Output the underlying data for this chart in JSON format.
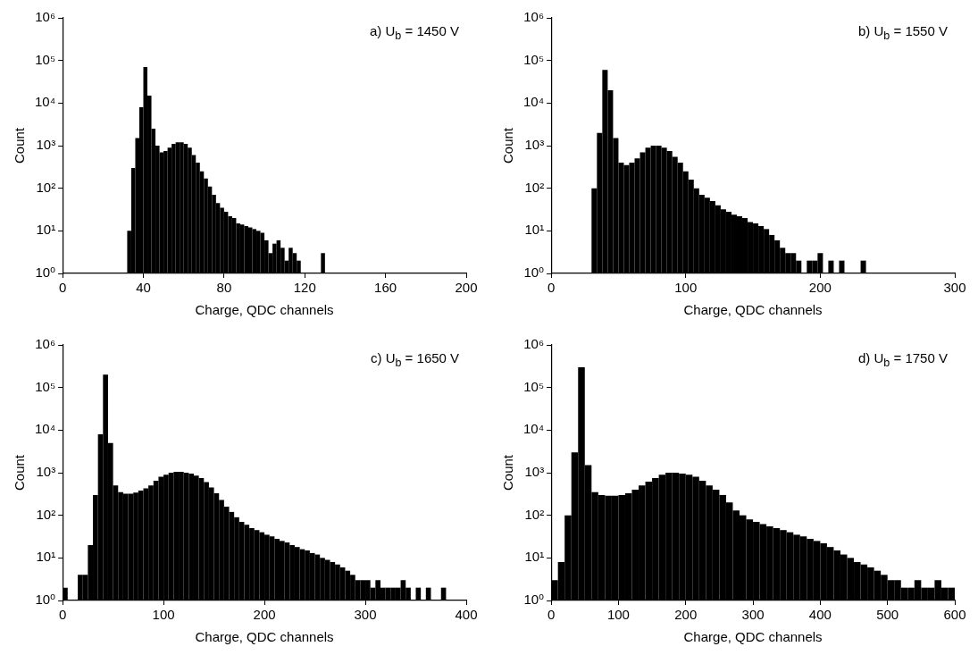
{
  "chart_data": [
    {
      "type": "histogram",
      "title": "a) U$_{b}$ = 1450 V",
      "xlabel": "Charge, QDC channels",
      "ylabel": "Count",
      "color": "#000000",
      "log": "y",
      "xlim": [
        0,
        200
      ],
      "xticks": [
        0,
        40,
        80,
        120,
        160,
        200
      ],
      "ylim": [
        1,
        1000000
      ],
      "yticks": [
        {
          "value": 1,
          "label": "10⁰"
        },
        {
          "value": 10,
          "label": "10¹"
        },
        {
          "value": 100,
          "label": "10²"
        },
        {
          "value": 1000,
          "label": "10³"
        },
        {
          "value": 10000,
          "label": "10⁴"
        },
        {
          "value": 100000,
          "label": "10⁵"
        },
        {
          "value": 1000000,
          "label": "10⁶"
        }
      ],
      "bins": [
        32,
        34,
        36,
        38,
        40,
        42,
        44,
        46,
        48,
        50,
        52,
        54,
        56,
        58,
        60,
        62,
        64,
        66,
        68,
        70,
        72,
        74,
        76,
        78,
        80,
        82,
        84,
        86,
        88,
        90,
        92,
        94,
        96,
        98,
        100,
        102,
        104,
        106,
        108,
        110,
        112,
        114,
        116,
        118,
        120,
        122,
        124,
        126,
        128,
        130
      ],
      "values": [
        10,
        300,
        1500,
        8000,
        70000,
        15000,
        2500,
        1000,
        700,
        750,
        900,
        1100,
        1200,
        1200,
        1100,
        900,
        600,
        400,
        250,
        170,
        110,
        70,
        45,
        35,
        28,
        22,
        20,
        15,
        14,
        13,
        12,
        11,
        10,
        9,
        6,
        3,
        5,
        6,
        4,
        2,
        4,
        3,
        2,
        null,
        null,
        null,
        null,
        null,
        3
      ]
    },
    {
      "type": "histogram",
      "title": "b) U$_{b}$ = 1550 V",
      "xlabel": "Charge, QDC channels",
      "ylabel": "Count",
      "color": "#000000",
      "log": "y",
      "xlim": [
        0,
        300
      ],
      "xticks": [
        0,
        100,
        200,
        300
      ],
      "ylim": [
        1,
        1000000
      ],
      "yticks": [
        {
          "value": 1,
          "label": "10⁰"
        },
        {
          "value": 10,
          "label": "10¹"
        },
        {
          "value": 100,
          "label": "10²"
        },
        {
          "value": 1000,
          "label": "10³"
        },
        {
          "value": 10000,
          "label": "10⁴"
        },
        {
          "value": 100000,
          "label": "10⁵"
        },
        {
          "value": 1000000,
          "label": "10⁶"
        }
      ],
      "bins": [
        30,
        34,
        38,
        42,
        46,
        50,
        54,
        58,
        62,
        66,
        70,
        74,
        78,
        82,
        86,
        90,
        94,
        98,
        102,
        106,
        110,
        114,
        118,
        122,
        126,
        130,
        134,
        138,
        142,
        146,
        150,
        154,
        158,
        162,
        166,
        170,
        174,
        178,
        182,
        186,
        190,
        194,
        198,
        202,
        206,
        210,
        214,
        218,
        222,
        226,
        230,
        234
      ],
      "values": [
        100,
        2000,
        60000,
        20000,
        1500,
        400,
        350,
        400,
        500,
        700,
        900,
        1000,
        1000,
        900,
        750,
        550,
        400,
        250,
        160,
        100,
        70,
        60,
        50,
        40,
        32,
        28,
        24,
        22,
        20,
        16,
        15,
        13,
        11,
        8,
        6,
        4,
        3,
        3,
        2,
        null,
        2,
        2,
        3,
        null,
        2,
        null,
        2,
        null,
        null,
        null,
        2
      ]
    },
    {
      "type": "histogram",
      "title": "c) U$_{b}$ = 1650 V",
      "xlabel": "Charge, QDC channels",
      "ylabel": "Count",
      "color": "#000000",
      "log": "y",
      "xlim": [
        0,
        400
      ],
      "xticks": [
        0,
        100,
        200,
        300,
        400
      ],
      "ylim": [
        1,
        1000000
      ],
      "yticks": [
        {
          "value": 1,
          "label": "10⁰"
        },
        {
          "value": 10,
          "label": "10¹"
        },
        {
          "value": 100,
          "label": "10²"
        },
        {
          "value": 1000,
          "label": "10³"
        },
        {
          "value": 10000,
          "label": "10⁴"
        },
        {
          "value": 100000,
          "label": "10⁵"
        },
        {
          "value": 1000000,
          "label": "10⁶"
        }
      ],
      "bins": [
        0,
        5,
        10,
        15,
        20,
        25,
        30,
        35,
        40,
        45,
        50,
        55,
        60,
        65,
        70,
        75,
        80,
        85,
        90,
        95,
        100,
        105,
        110,
        115,
        120,
        125,
        130,
        135,
        140,
        145,
        150,
        155,
        160,
        165,
        170,
        175,
        180,
        185,
        190,
        195,
        200,
        205,
        210,
        215,
        220,
        225,
        230,
        235,
        240,
        245,
        250,
        255,
        260,
        265,
        270,
        275,
        280,
        285,
        290,
        295,
        300,
        305,
        310,
        315,
        320,
        325,
        330,
        335,
        340,
        345,
        350,
        355,
        360,
        365,
        370,
        375,
        380
      ],
      "values": [
        2,
        null,
        null,
        4,
        4,
        20,
        300,
        8000,
        200000,
        5000,
        500,
        350,
        320,
        320,
        340,
        380,
        430,
        500,
        650,
        800,
        900,
        1000,
        1050,
        1050,
        1000,
        950,
        850,
        750,
        600,
        450,
        330,
        230,
        160,
        120,
        90,
        70,
        60,
        50,
        45,
        40,
        35,
        32,
        28,
        25,
        23,
        20,
        18,
        16,
        15,
        13,
        12,
        10,
        9,
        8,
        7,
        6,
        5,
        4,
        3,
        3,
        3,
        2,
        3,
        2,
        2,
        2,
        2,
        3,
        2,
        null,
        2,
        null,
        2,
        null,
        null,
        2
      ]
    },
    {
      "type": "histogram",
      "title": "d) U$_{b}$ = 1750 V",
      "xlabel": "Charge, QDC channels",
      "ylabel": "Count",
      "color": "#000000",
      "log": "y",
      "xlim": [
        0,
        600
      ],
      "xticks": [
        0,
        100,
        200,
        300,
        400,
        500,
        600
      ],
      "ylim": [
        1,
        1000000
      ],
      "yticks": [
        {
          "value": 1,
          "label": "10⁰"
        },
        {
          "value": 10,
          "label": "10¹"
        },
        {
          "value": 100,
          "label": "10²"
        },
        {
          "value": 1000,
          "label": "10³"
        },
        {
          "value": 10000,
          "label": "10⁴"
        },
        {
          "value": 100000,
          "label": "10⁵"
        },
        {
          "value": 1000000,
          "label": "10⁶"
        }
      ],
      "bins": [
        0,
        10,
        20,
        30,
        40,
        50,
        60,
        70,
        80,
        90,
        100,
        110,
        120,
        130,
        140,
        150,
        160,
        170,
        180,
        190,
        200,
        210,
        220,
        230,
        240,
        250,
        260,
        270,
        280,
        290,
        300,
        310,
        320,
        330,
        340,
        350,
        360,
        370,
        380,
        390,
        400,
        410,
        420,
        430,
        440,
        450,
        460,
        470,
        480,
        490,
        500,
        510,
        520,
        530,
        540,
        550,
        560,
        570,
        580,
        590,
        600
      ],
      "values": [
        3,
        8,
        100,
        3000,
        300000,
        1500,
        350,
        300,
        290,
        290,
        300,
        330,
        400,
        500,
        620,
        750,
        900,
        1000,
        1000,
        950,
        900,
        800,
        650,
        500,
        400,
        300,
        200,
        130,
        100,
        80,
        70,
        62,
        55,
        50,
        45,
        40,
        35,
        32,
        28,
        25,
        22,
        18,
        15,
        12,
        10,
        8,
        7,
        6,
        5,
        4,
        3,
        3,
        2,
        2,
        3,
        2,
        2,
        3,
        2,
        2
      ]
    }
  ]
}
